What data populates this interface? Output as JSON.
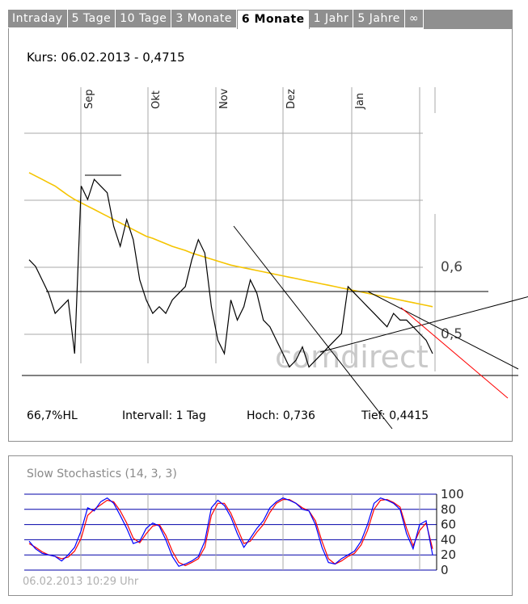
{
  "tabs": [
    {
      "label": "Intraday",
      "active": false
    },
    {
      "label": "5 Tage",
      "active": false
    },
    {
      "label": "10 Tage",
      "active": false
    },
    {
      "label": "3 Monate",
      "active": false
    },
    {
      "label": "6 Monate",
      "active": true
    },
    {
      "label": "1 Jahr",
      "active": false
    },
    {
      "label": "5 Jahre",
      "active": false
    },
    {
      "label": "∞",
      "active": false
    }
  ],
  "kurs_label": "Kurs: 06.02.2013 - 0,4715",
  "footer": {
    "hl": "66,7%HL",
    "interval": "Intervall: 1 Tag",
    "hoch": "Hoch:  0,736",
    "tief": "Tief: 0,4415"
  },
  "watermark": "comdirect",
  "stoch_title": "Slow Stochastics (14, 3, 3)",
  "timestamp": "06.02.2013 10:29 Uhr",
  "colors": {
    "price": "#000000",
    "ma": "#f5c400",
    "stoch_k": "#0000ff",
    "stoch_d": "#ff0000",
    "trend_red": "#ff0000",
    "grid": "#a8a8a8"
  },
  "chart_data": [
    {
      "type": "line",
      "months": [
        "Sep",
        "Okt",
        "Nov",
        "Dez",
        "Jan"
      ],
      "y_ticks": [
        "0,6",
        "0,5"
      ],
      "ylim": [
        0.44,
        0.76
      ],
      "x": [
        0,
        2,
        4,
        6,
        8,
        10,
        12,
        14,
        16,
        18,
        20,
        22,
        24,
        26,
        28,
        30,
        32,
        34,
        36,
        38,
        40,
        42,
        44,
        46,
        48,
        50,
        52,
        54,
        56,
        58,
        60,
        62,
        64,
        66,
        68,
        70,
        72,
        74,
        76,
        78,
        80,
        82,
        84,
        86,
        88,
        90,
        92,
        94,
        96,
        98,
        100,
        102,
        104,
        106,
        108,
        110,
        112,
        114,
        116,
        118,
        120,
        122,
        124
      ],
      "series": [
        {
          "values": [
            0.61,
            0.6,
            0.58,
            0.56,
            0.53,
            0.54,
            0.55,
            0.47,
            0.72,
            0.7,
            0.73,
            0.72,
            0.71,
            0.66,
            0.63,
            0.67,
            0.64,
            0.58,
            0.55,
            0.53,
            0.54,
            0.53,
            0.55,
            0.56,
            0.57,
            0.61,
            0.64,
            0.62,
            0.54,
            0.49,
            0.47,
            0.55,
            0.52,
            0.54,
            0.58,
            0.56,
            0.52,
            0.51,
            0.49,
            0.47,
            0.45,
            0.46,
            0.48,
            0.45,
            0.46,
            0.47,
            0.48,
            0.49,
            0.5,
            0.57,
            0.56,
            0.55,
            0.54,
            0.53,
            0.52,
            0.51,
            0.53,
            0.52,
            0.52,
            0.51,
            0.5,
            0.49,
            0.47
          ]
        },
        {
          "values": [
            0.74,
            0.735,
            0.73,
            0.725,
            0.72,
            0.713,
            0.706,
            0.7,
            0.695,
            0.69,
            0.685,
            0.68,
            0.675,
            0.67,
            0.665,
            0.66,
            0.655,
            0.65,
            0.645,
            0.642,
            0.638,
            0.634,
            0.63,
            0.627,
            0.624,
            0.62,
            0.617,
            0.614,
            0.611,
            0.608,
            0.605,
            0.602,
            0.6,
            0.598,
            0.596,
            0.594,
            0.592,
            0.59,
            0.588,
            0.586,
            0.584,
            0.582,
            0.58,
            0.578,
            0.576,
            0.574,
            0.572,
            0.57,
            0.568,
            0.566,
            0.564,
            0.562,
            0.56,
            0.558,
            0.556,
            0.554,
            0.552,
            0.55,
            0.548,
            0.546,
            0.544,
            0.542,
            0.54
          ]
        }
      ]
    },
    {
      "type": "line",
      "title": "Slow Stochastics (14, 3, 3)",
      "ylim": [
        0,
        100
      ],
      "y_ticks": [
        "100",
        "80",
        "60",
        "40",
        "20",
        "0"
      ],
      "x": [
        0,
        2,
        4,
        6,
        8,
        10,
        12,
        14,
        16,
        18,
        20,
        22,
        24,
        26,
        28,
        30,
        32,
        34,
        36,
        38,
        40,
        42,
        44,
        46,
        48,
        50,
        52,
        54,
        56,
        58,
        60,
        62,
        64,
        66,
        68,
        70,
        72,
        74,
        76,
        78,
        80,
        82,
        84,
        86,
        88,
        90,
        92,
        94,
        96,
        98,
        100,
        102,
        104,
        106,
        108,
        110,
        112,
        114,
        116,
        118,
        120,
        122,
        124
      ],
      "series": [
        {
          "values": [
            38,
            28,
            22,
            20,
            18,
            12,
            20,
            30,
            52,
            82,
            78,
            90,
            95,
            88,
            72,
            55,
            35,
            38,
            55,
            62,
            58,
            40,
            18,
            5,
            8,
            12,
            18,
            38,
            82,
            92,
            85,
            70,
            48,
            30,
            42,
            55,
            65,
            82,
            90,
            95,
            92,
            88,
            80,
            78,
            60,
            30,
            10,
            8,
            15,
            20,
            25,
            38,
            60,
            88,
            95,
            92,
            88,
            80,
            48,
            28,
            60,
            65,
            20
          ]
        },
        {
          "values": [
            35,
            30,
            24,
            20,
            18,
            15,
            17,
            25,
            42,
            72,
            80,
            86,
            92,
            90,
            78,
            62,
            42,
            36,
            48,
            58,
            60,
            46,
            25,
            10,
            6,
            10,
            15,
            30,
            72,
            88,
            88,
            75,
            55,
            35,
            38,
            50,
            60,
            76,
            88,
            93,
            93,
            88,
            82,
            78,
            65,
            38,
            15,
            8,
            12,
            18,
            22,
            33,
            52,
            80,
            92,
            93,
            89,
            83,
            55,
            32,
            52,
            62,
            28
          ]
        }
      ]
    }
  ]
}
